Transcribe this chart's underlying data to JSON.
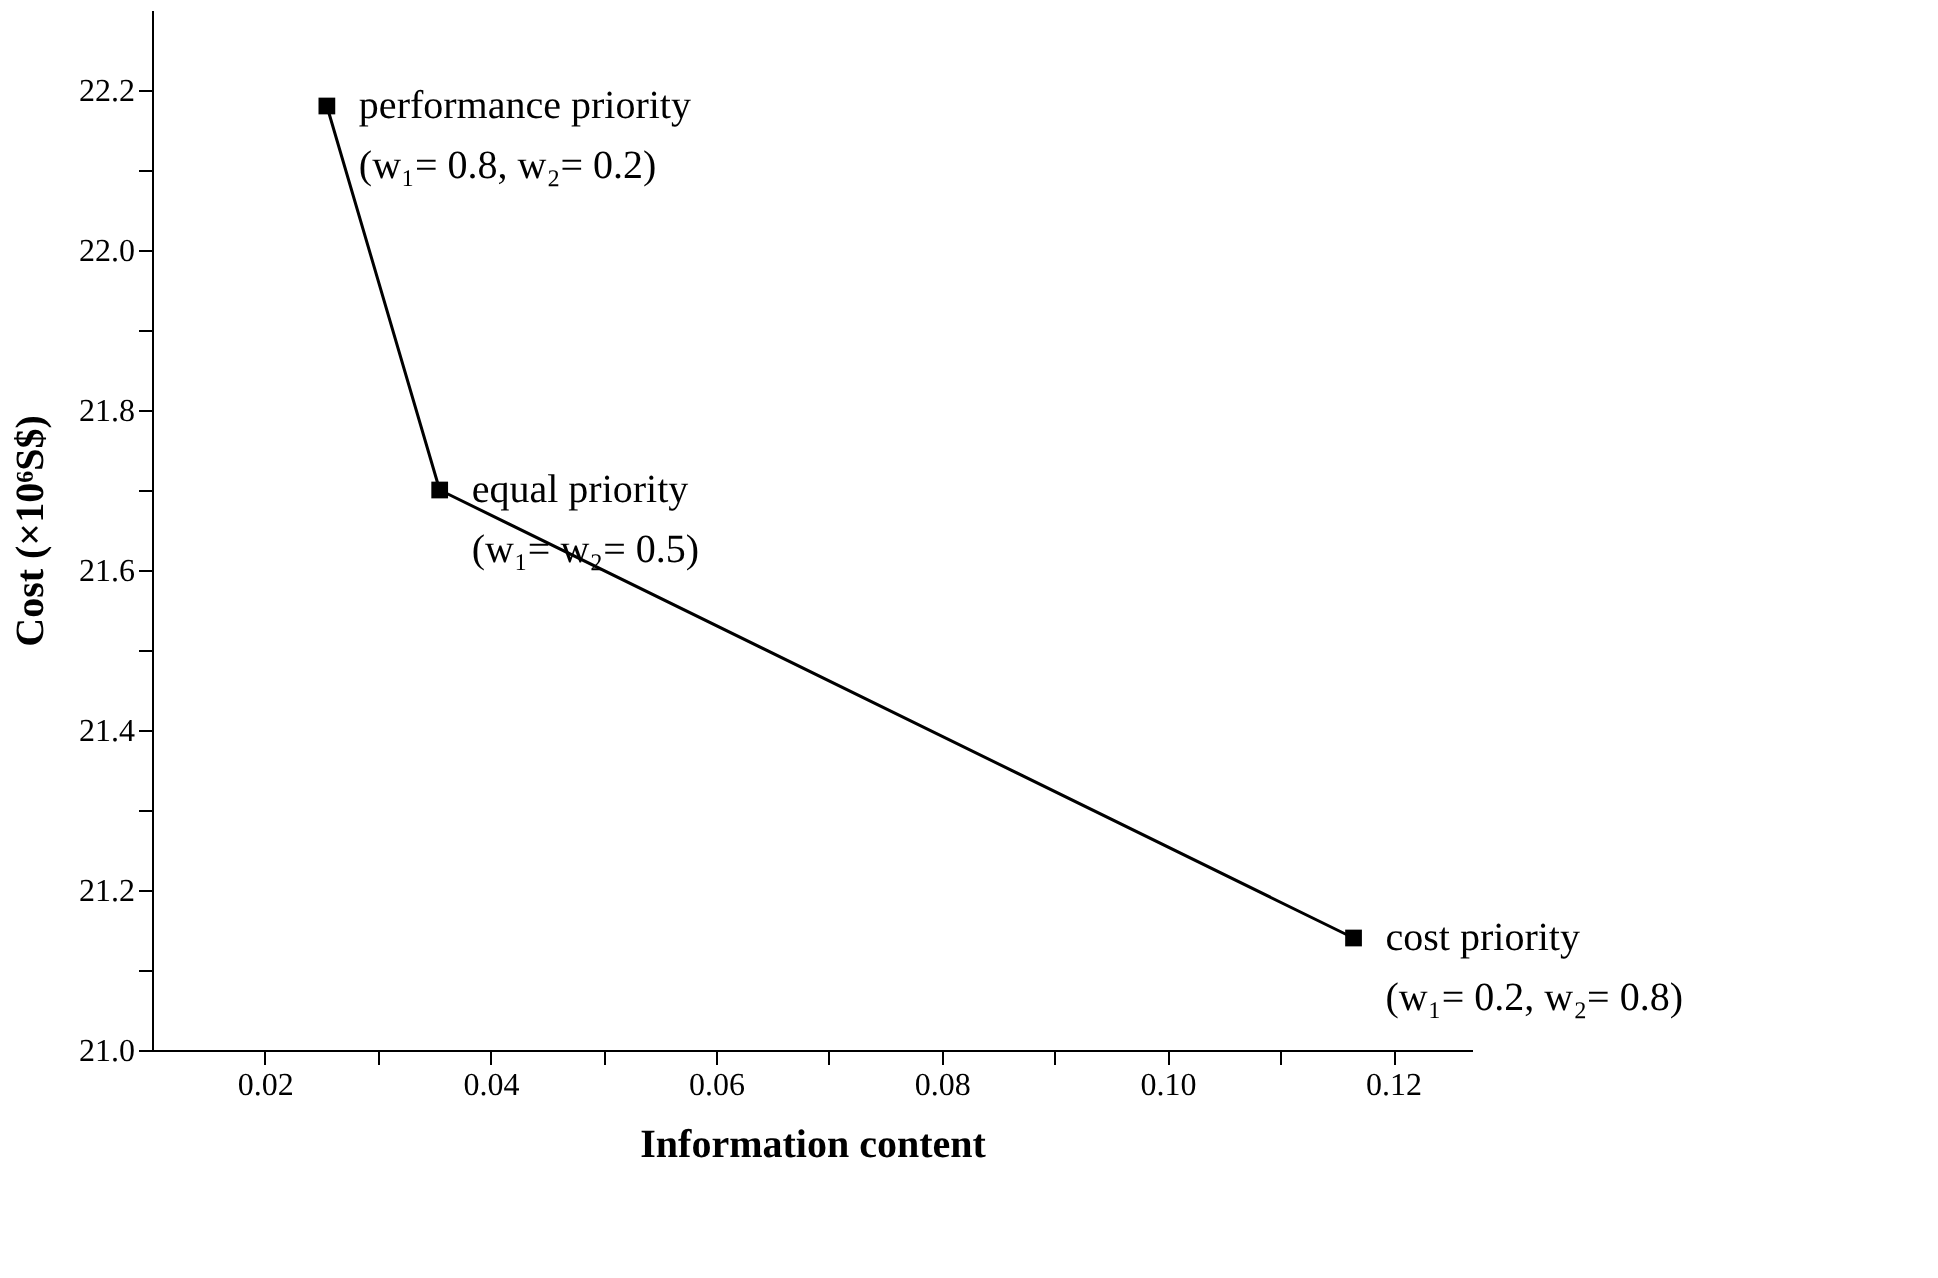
{
  "chart_data": {
    "type": "line",
    "xlabel": "Information content",
    "ylabel": "Cost (×10⁶S$)",
    "x": [
      0.0255,
      0.0355,
      0.1165
    ],
    "series": [
      {
        "color": "#000000",
        "values": [
          22.18,
          21.7,
          21.14
        ]
      }
    ],
    "xlim": [
      0.01,
      0.127
    ],
    "xticks": [
      0.02,
      {
        "value": 0.03,
        "label": null
      },
      0.04,
      {
        "value": 0.05,
        "label": null
      },
      0.06,
      {
        "value": 0.07,
        "label": null
      },
      0.08,
      {
        "value": 0.09,
        "label": null
      },
      {
        "value": 0.1,
        "label": "0.10"
      },
      {
        "value": 0.11,
        "label": null
      },
      0.12
    ],
    "ylim": [
      21.0,
      22.3
    ],
    "yticks": [
      {
        "value": 21,
        "label": "21.0"
      },
      {
        "value": 21.1,
        "label": null
      },
      21.2,
      {
        "value": 21.3,
        "label": null
      },
      21.4,
      {
        "value": 21.5,
        "label": null
      },
      21.6,
      {
        "value": 21.7,
        "label": null
      },
      21.8,
      {
        "value": 21.9,
        "label": null
      },
      {
        "value": 22,
        "label": "22.0"
      },
      {
        "value": 22.1,
        "label": null
      },
      22.2
    ],
    "annotations": [
      {
        "text": "performance priority\n(w₁= 0.8, w₂= 0.2)",
        "x": 0.0255,
        "y": 22.18
      },
      {
        "text": "equal priority\n(w₁= w₂= 0.5)",
        "x": 0.0355,
        "y": 21.7
      },
      {
        "text": "cost priority\n(w₁= 0.2, w₂= 0.8)",
        "x": 0.1165,
        "y": 21.14
      }
    ],
    "marker": "square",
    "line_style": "solid",
    "grid": false
  }
}
